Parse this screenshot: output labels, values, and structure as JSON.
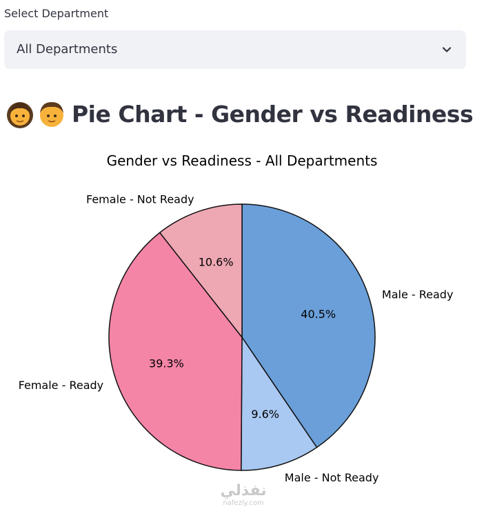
{
  "select": {
    "label": "Select Department",
    "value": "All Departments"
  },
  "heading": {
    "text": "Pie Chart - Gender vs Readiness",
    "icons": [
      "woman-face-emoji",
      "man-face-emoji"
    ]
  },
  "chart_data": {
    "type": "pie",
    "title": "Gender vs Readiness - All Departments",
    "categories": [
      "Male - Ready",
      "Male - Not Ready",
      "Female - Ready",
      "Female - Not Ready"
    ],
    "values": [
      40.5,
      9.6,
      39.3,
      10.6
    ],
    "value_labels": [
      "40.5%",
      "9.6%",
      "39.3%",
      "10.6%"
    ],
    "colors": [
      "#6a9fd9",
      "#a9c8f2",
      "#f485a6",
      "#eea8b3"
    ],
    "start": "12 o'clock",
    "direction": "clockwise"
  },
  "watermark": {
    "text": "نفذلي",
    "url": "nafezly.com"
  }
}
